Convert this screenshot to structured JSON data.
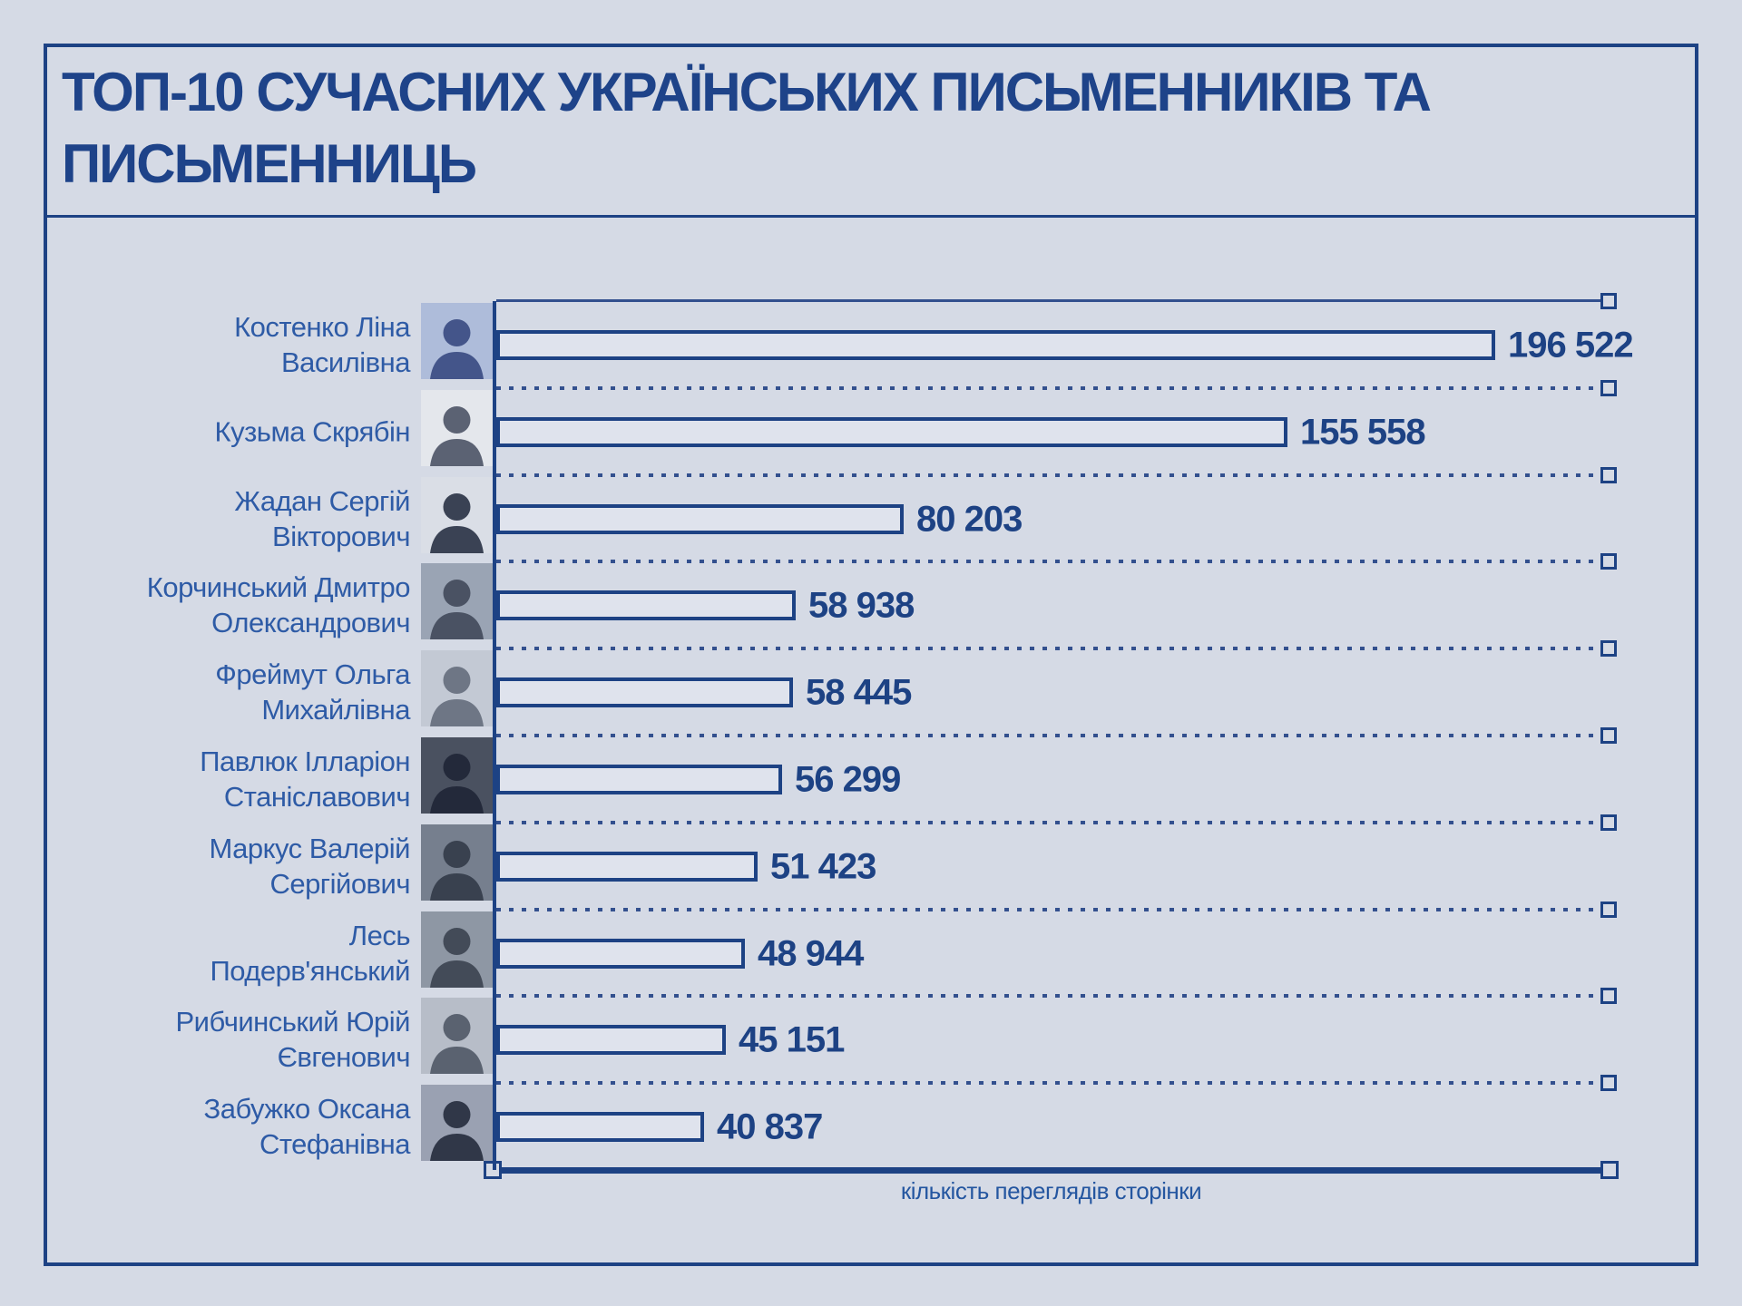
{
  "title": "ТОП-10 СУЧАСНИХ УКРАЇНСЬКИХ ПИСЬМЕННИКІВ ТА ПИСЬМЕННИЦЬ",
  "title_lines": [
    "ТОП-10 СУЧАСНИХ УКРАЇНСЬКИХ ПИСЬМЕННИКІВ ТА",
    "ПИСЬМЕННИЦЬ"
  ],
  "chart_data": {
    "type": "bar",
    "orientation": "horizontal",
    "title": "ТОП-10 СУЧАСНИХ УКРАЇНСЬКИХ ПИСЬМЕННИКІВ ТА ПИСЬМЕННИЦЬ",
    "categories": [
      "Костенко Ліна Василівна",
      "Кузьма Скрябін",
      "Жадан Сергій Вікторович",
      "Корчинський Дмитро Олександрович",
      "Фреймут Ольга Михайлівна",
      "Павлюк Ілларіон Станіславович",
      "Маркус Валерій Сергійович",
      "Лесь Подерв'янський",
      "Рибчинський Юрій Євгенович",
      "Забужко Оксана Стефанівна"
    ],
    "values": [
      196522,
      155558,
      80203,
      58938,
      58445,
      56299,
      51423,
      48944,
      45151,
      40837
    ],
    "value_labels": [
      "196 522",
      "155 558",
      "80 203",
      "58 938",
      "58 445",
      "56 299",
      "51 423",
      "48 944",
      "45 151",
      "40 837"
    ],
    "xlabel": "кількість переглядів сторінки",
    "ylabel": "",
    "xlim": [
      0,
      196522
    ],
    "legend": "none",
    "gridlines": "dotted horizontal row separators with square end markers; top separator solid"
  },
  "writers": [
    {
      "lines": [
        "Костенко Ліна",
        "Василівна"
      ],
      "views": 196522,
      "views_label": "196 522",
      "photo": {
        "bg": "#aebcda",
        "fg": "#44558a"
      }
    },
    {
      "lines": [
        "Кузьма Скрябін"
      ],
      "views": 155558,
      "views_label": "155 558",
      "photo": {
        "bg": "#e4e7ec",
        "fg": "#5b6273"
      }
    },
    {
      "lines": [
        "Жадан Сергій",
        "Вікторович"
      ],
      "views": 80203,
      "views_label": "80 203",
      "photo": {
        "bg": "#dadee6",
        "fg": "#3a4254"
      }
    },
    {
      "lines": [
        "Корчинський Дмитро",
        "Олександрович"
      ],
      "views": 58938,
      "views_label": "58 938",
      "photo": {
        "bg": "#9aa4b4",
        "fg": "#4a5263"
      }
    },
    {
      "lines": [
        "Фреймут Ольга",
        "Михайлівна"
      ],
      "views": 58445,
      "views_label": "58 445",
      "photo": {
        "bg": "#c3c9d4",
        "fg": "#6e7685"
      }
    },
    {
      "lines": [
        "Павлюк Ілларіон",
        "Станіславович"
      ],
      "views": 56299,
      "views_label": "56 299",
      "photo": {
        "bg": "#4a5160",
        "fg": "#23293a"
      }
    },
    {
      "lines": [
        "Маркус Валерій",
        "Сергійович"
      ],
      "views": 51423,
      "views_label": "51 423",
      "photo": {
        "bg": "#767f8e",
        "fg": "#39414f"
      }
    },
    {
      "lines": [
        "Лесь",
        "Подерв'янський"
      ],
      "views": 48944,
      "views_label": "48 944",
      "photo": {
        "bg": "#8e97a4",
        "fg": "#434b58"
      }
    },
    {
      "lines": [
        "Рибчинський Юрій",
        "Євгенович"
      ],
      "views": 45151,
      "views_label": "45 151",
      "photo": {
        "bg": "#b7bdc8",
        "fg": "#5a woman6270"
      }
    },
    {
      "lines": [
        "Забужко Оксана",
        "Стефанівна"
      ],
      "views": 40837,
      "views_label": "40 837",
      "photo": {
        "bg": "#9aa1b2",
        "fg": "#303748"
      }
    }
  ],
  "colors": {
    "background": "#d5dae5",
    "navy": "#1d4284",
    "title_blue": "#1e4389",
    "name_blue": "#2e5ba6",
    "bar_fill": "#dfe3ed",
    "grid": "#33508e"
  }
}
